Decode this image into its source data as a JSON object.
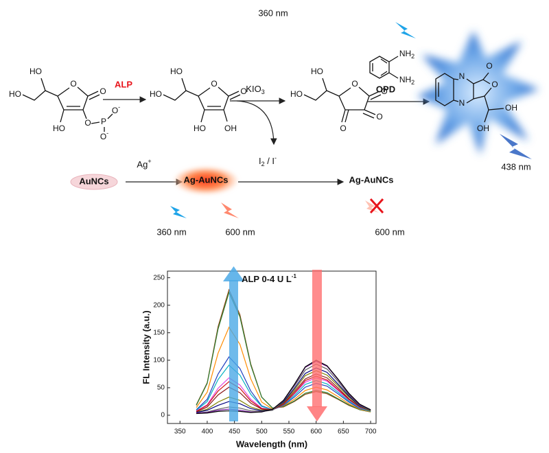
{
  "scheme": {
    "s1": [
      "HO",
      "HO",
      "O",
      "O",
      "HO",
      "O",
      "P",
      "O",
      "-",
      "O",
      "-"
    ],
    "alp": "ALP",
    "s2": [
      "HO",
      "HO",
      "O",
      "O",
      "HO",
      "OH"
    ],
    "kio3": [
      "KIO",
      "3"
    ],
    "s3": [
      "HO",
      "HO",
      "O",
      "O",
      "O",
      "O"
    ],
    "opd_atoms": [
      "NH",
      "2",
      "NH",
      "2"
    ],
    "opd": "OPD",
    "product": [
      "N",
      "N",
      "O",
      "O",
      "OH",
      "OH"
    ],
    "ex_top": "360 nm",
    "em_top": "438 nm",
    "iodine": [
      "I",
      "2",
      " / I",
      "-"
    ],
    "auncs": "AuNCs",
    "ag": [
      "Ag",
      "+"
    ],
    "ag_auncs_1": "Ag-AuNCs",
    "ex_row": "360 nm",
    "em_row": "600 nm",
    "ag_auncs_2": "Ag-AuNCs",
    "em_quenched": "600 nm"
  },
  "chart_data": {
    "type": "line",
    "xlabel": "Wavelength (nm)",
    "ylabel": "FL Intensity (a.u.)",
    "annotation": [
      "ALP 0-4 U L",
      "-1"
    ],
    "x": [
      380,
      400,
      420,
      440,
      460,
      480,
      500,
      520,
      540,
      560,
      580,
      600,
      620,
      640,
      660,
      680,
      700
    ],
    "series": [
      {
        "color": "#8b4513",
        "values": [
          19,
          59,
          161,
          228,
          183,
          93,
          33,
          13,
          15,
          25,
          38,
          43,
          39,
          29,
          18,
          10,
          6
        ]
      },
      {
        "color": "#2e7d32",
        "values": [
          18,
          58,
          157,
          223,
          179,
          91,
          33,
          13,
          16,
          26,
          40,
          45,
          41,
          30,
          19,
          10,
          6
        ]
      },
      {
        "color": "#ff8c00",
        "values": [
          14,
          42,
          113,
          160,
          129,
          66,
          24,
          11,
          17,
          29,
          45,
          51,
          46,
          34,
          21,
          11,
          6
        ]
      },
      {
        "color": "#1f3fbf",
        "values": [
          10,
          29,
          75,
          106,
          85,
          44,
          17,
          10,
          18,
          33,
          51,
          58,
          53,
          39,
          24,
          12,
          7
        ]
      },
      {
        "color": "#00b0c0",
        "values": [
          9,
          25,
          65,
          91,
          73,
          38,
          16,
          10,
          19,
          36,
          56,
          63,
          57,
          42,
          26,
          13,
          7
        ]
      },
      {
        "color": "#e040e0",
        "values": [
          8,
          19,
          49,
          68,
          55,
          29,
          13,
          10,
          20,
          39,
          60,
          68,
          62,
          45,
          28,
          14,
          8
        ]
      },
      {
        "color": "#d01010",
        "values": [
          7,
          18,
          44,
          61,
          49,
          26,
          12,
          10,
          20,
          40,
          63,
          71,
          64,
          47,
          29,
          15,
          8
        ]
      },
      {
        "color": "#8b1a1a",
        "values": [
          6,
          15,
          37,
          51,
          41,
          22,
          11,
          10,
          21,
          43,
          66,
          75,
          68,
          50,
          30,
          15,
          8
        ]
      },
      {
        "color": "#808000",
        "values": [
          5,
          11,
          24,
          33,
          27,
          15,
          9,
          10,
          23,
          46,
          72,
          81,
          73,
          54,
          33,
          16,
          8
        ]
      },
      {
        "color": "#000080",
        "values": [
          5,
          9,
          18,
          25,
          21,
          12,
          8,
          10,
          24,
          49,
          76,
          86,
          78,
          57,
          35,
          17,
          9
        ]
      },
      {
        "color": "#606060",
        "values": [
          4,
          6,
          11,
          15,
          13,
          8,
          7,
          9,
          26,
          53,
          82,
          93,
          84,
          62,
          37,
          18,
          9
        ]
      },
      {
        "color": "#7a1fa2",
        "values": [
          4,
          5,
          9,
          11,
          9,
          6,
          6,
          11,
          27,
          55,
          87,
          98,
          89,
          65,
          39,
          19,
          10
        ]
      },
      {
        "color": "#000000",
        "values": [
          3,
          4,
          7,
          8,
          7,
          5,
          6,
          11,
          27,
          56,
          88,
          100,
          90,
          66,
          40,
          20,
          10
        ]
      }
    ],
    "xlim": [
      327,
      710
    ],
    "ylim": [
      -15,
      262
    ],
    "xticks": [
      350,
      400,
      450,
      500,
      550,
      600,
      650,
      700
    ],
    "yticks": [
      0,
      50,
      100,
      150,
      200,
      250
    ],
    "grid": false
  }
}
